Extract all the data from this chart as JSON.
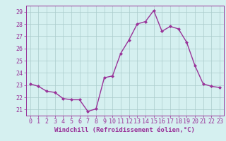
{
  "x": [
    0,
    1,
    2,
    3,
    4,
    5,
    6,
    7,
    8,
    9,
    10,
    11,
    12,
    13,
    14,
    15,
    16,
    17,
    18,
    19,
    20,
    21,
    22,
    23
  ],
  "y": [
    23.1,
    22.9,
    22.5,
    22.4,
    21.9,
    21.8,
    21.8,
    20.85,
    21.05,
    23.6,
    23.75,
    25.6,
    26.7,
    28.0,
    28.2,
    29.1,
    27.4,
    27.8,
    27.6,
    26.5,
    24.6,
    23.1,
    22.9,
    22.8
  ],
  "line_color": "#993399",
  "marker": "D",
  "marker_size": 2,
  "linewidth": 1.0,
  "bg_color": "#d5f0f0",
  "grid_color": "#aacccc",
  "tick_color": "#993399",
  "label_color": "#993399",
  "xlabel": "Windchill (Refroidissement éolien,°C)",
  "xlabel_fontsize": 6.5,
  "tick_fontsize": 6.0,
  "ytick_labels": [
    21,
    22,
    23,
    24,
    25,
    26,
    27,
    28,
    29
  ],
  "ylim": [
    20.5,
    29.5
  ],
  "xlim": [
    -0.5,
    23.5
  ],
  "xtick_labels": [
    "0",
    "1",
    "2",
    "3",
    "4",
    "5",
    "6",
    "7",
    "8",
    "9",
    "10",
    "11",
    "12",
    "13",
    "14",
    "15",
    "16",
    "17",
    "18",
    "19",
    "20",
    "21",
    "22",
    "23"
  ]
}
